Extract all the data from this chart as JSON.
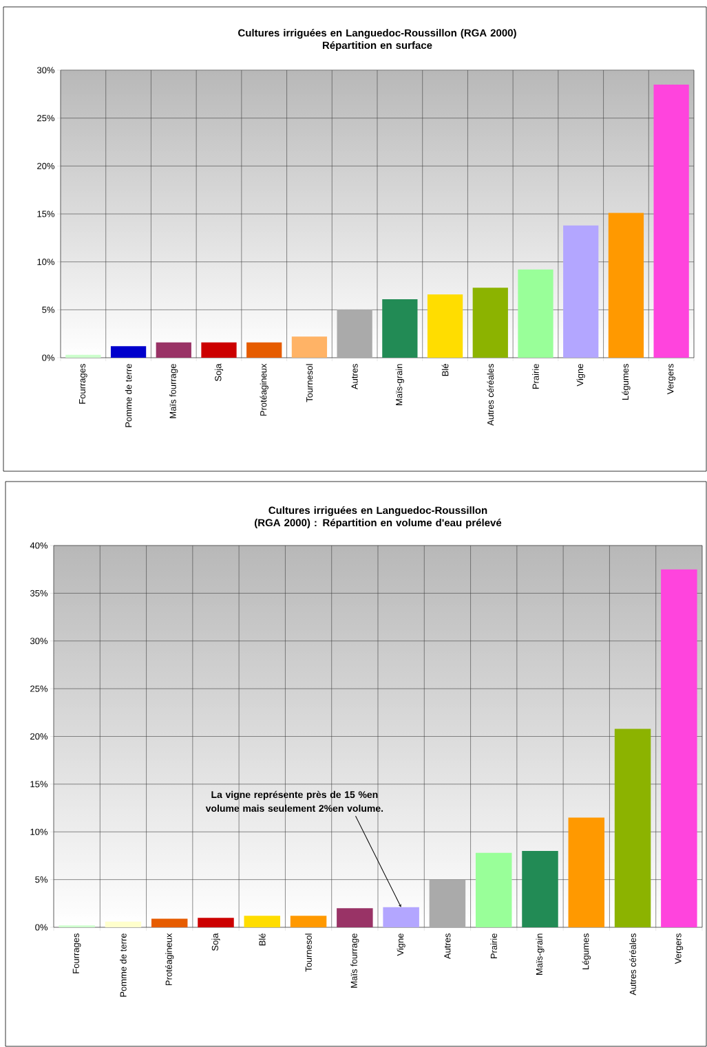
{
  "chart_data": [
    {
      "type": "bar",
      "title": "Cultures irriguées en Languedoc-Roussillon (RGA 2000)",
      "subtitle": "Répartition en surface",
      "categories": [
        "Fourrages",
        "Pomme de terre",
        "Maïs fourrage",
        "Soja",
        "Protéagineux",
        "Tournesol",
        "Autres",
        "Maïs-grain",
        "Blé",
        "Autres céréales",
        "Prairie",
        "Vigne",
        "Légumes",
        "Vergers"
      ],
      "values": [
        0.3,
        1.2,
        1.6,
        1.6,
        1.6,
        2.2,
        5.0,
        6.1,
        6.6,
        7.3,
        9.2,
        13.8,
        15.1,
        28.5
      ],
      "colors": [
        "#ccffcc",
        "#0000cc",
        "#993366",
        "#cc0000",
        "#e65c00",
        "#ffb366",
        "#aaaaaa",
        "#228b55",
        "#ffdd00",
        "#8cb300",
        "#99ff99",
        "#b3a6ff",
        "#ff9900",
        "#ff44dd"
      ],
      "ylim": [
        0,
        30
      ],
      "yticks": [
        {
          "value": 0,
          "label": "0%"
        },
        {
          "value": 5,
          "label": "5%"
        },
        {
          "value": 10,
          "label": "10%"
        },
        {
          "value": 15,
          "label": "15%"
        },
        {
          "value": 20,
          "label": "20%"
        },
        {
          "value": 25,
          "label": "25%"
        },
        {
          "value": 30,
          "label": "30%"
        }
      ],
      "grid": true
    },
    {
      "type": "bar",
      "title": "Cultures irriguées en Languedoc-Roussillon (RGA 2000) : Répartition en volume d'eau prélevé",
      "categories": [
        "Fourrages",
        "Pomme de terre",
        "Protéagineux",
        "Soja",
        "Blé",
        "Tournesol",
        "Maïs fourrage",
        "Vigne",
        "Autres",
        "Prairie",
        "Maïs-grain",
        "Légumes",
        "Autres céréales",
        "Vergers"
      ],
      "values": [
        0.2,
        0.6,
        0.9,
        1.0,
        1.2,
        1.2,
        2.0,
        2.1,
        5.0,
        7.8,
        8.0,
        11.5,
        20.8,
        37.5
      ],
      "colors": [
        "#ccffcc",
        "#ffffcc",
        "#e65c00",
        "#cc0000",
        "#ffdd00",
        "#ff9900",
        "#993366",
        "#b3a6ff",
        "#aaaaaa",
        "#99ff99",
        "#228b55",
        "#ff9900",
        "#8cb300",
        "#ff44dd"
      ],
      "ylim": [
        0,
        40
      ],
      "yticks": [
        {
          "value": 0,
          "label": "0%"
        },
        {
          "value": 5,
          "label": "5%"
        },
        {
          "value": 10,
          "label": "10%"
        },
        {
          "value": 15,
          "label": "15%"
        },
        {
          "value": 20,
          "label": "20%"
        },
        {
          "value": 25,
          "label": "25%"
        },
        {
          "value": 30,
          "label": "30%"
        },
        {
          "value": 35,
          "label": "35%"
        },
        {
          "value": 40,
          "label": "40%"
        }
      ],
      "annotations": [
        {
          "text": "La vigne représente près de 15 %en volume mais seulement 2%en volume.",
          "x": "Vigne",
          "y": 2.1
        }
      ],
      "grid": true
    }
  ]
}
